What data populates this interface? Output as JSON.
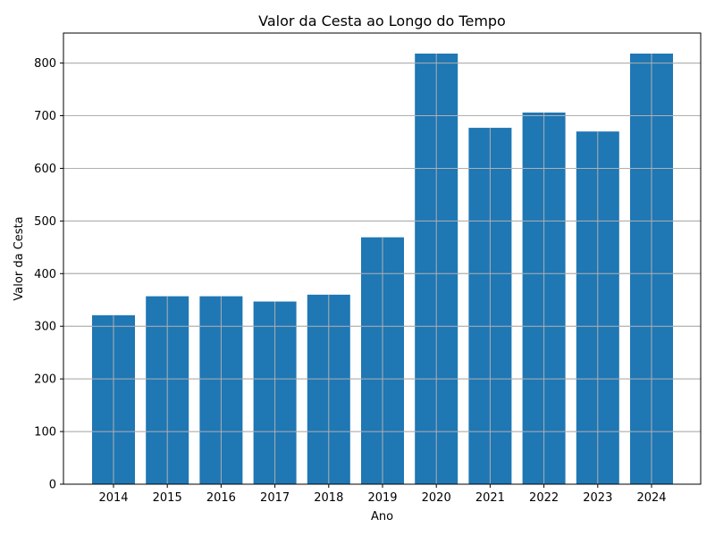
{
  "chart_data": {
    "type": "bar",
    "title": "Valor da Cesta ao Longo do Tempo",
    "xlabel": "Ano",
    "ylabel": "Valor da Cesta",
    "categories": [
      "2014",
      "2015",
      "2016",
      "2017",
      "2018",
      "2019",
      "2020",
      "2021",
      "2022",
      "2023",
      "2024"
    ],
    "values": [
      321,
      357,
      357,
      347,
      360,
      469,
      818,
      677,
      706,
      670,
      818
    ],
    "ylim": [
      0,
      857
    ],
    "yticks": [
      0,
      100,
      200,
      300,
      400,
      500,
      600,
      700,
      800
    ],
    "grid": true,
    "bar_color": "#1f77b4",
    "grid_color": "#b0b0b0"
  }
}
